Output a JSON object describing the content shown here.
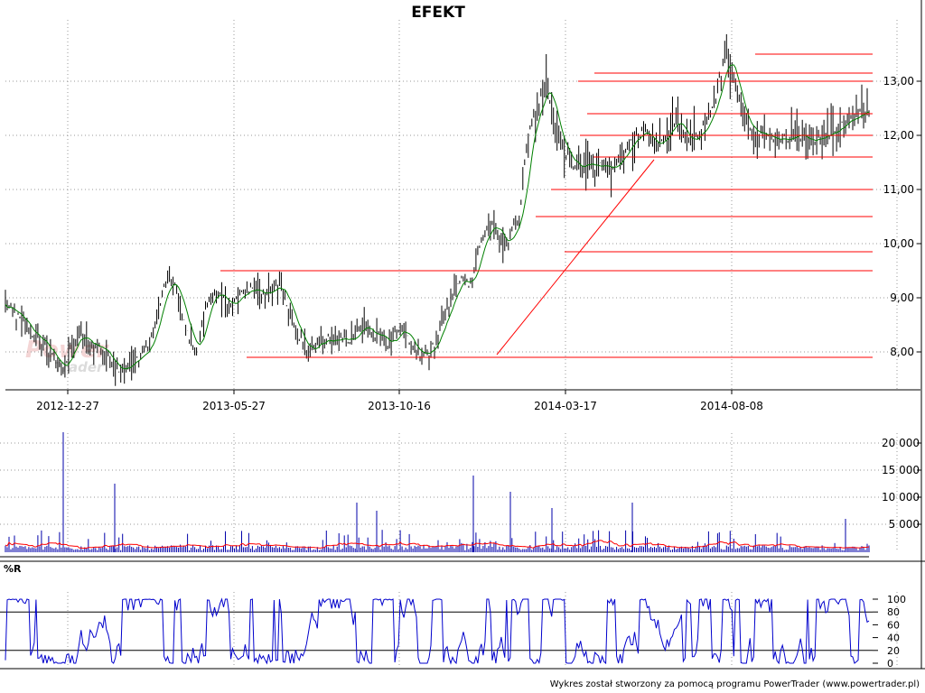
{
  "chart_data": [
    {
      "type": "ohlc",
      "title": "EFEKT",
      "xticks": [
        "2012-12-27",
        "2013-05-27",
        "2013-10-16",
        "2014-03-17",
        "2014-08-08"
      ],
      "yticks": [
        "8,00",
        "9,00",
        "10,00",
        "11,00",
        "12,00",
        "13,00"
      ],
      "ylim": [
        7.4,
        13.9
      ],
      "grid": true,
      "axis_side": "right",
      "series": [
        {
          "kind": "close-anchors",
          "values": [
            8.85,
            8.72,
            8.62,
            8.48,
            8.32,
            8.2,
            8.1,
            7.85,
            7.7,
            7.85,
            8.2,
            8.3,
            8.15,
            8.12,
            8.08,
            7.9,
            7.75,
            7.7,
            7.75,
            7.85,
            8.0,
            8.1,
            8.6,
            9.15,
            9.3,
            9.1,
            8.55,
            8.2,
            8.0,
            8.7,
            9.1,
            9.0,
            8.95,
            8.85,
            9.0,
            9.1,
            9.2,
            9.1,
            9.1,
            9.1,
            9.25,
            8.9,
            8.6,
            8.25,
            8.0,
            8.1,
            8.2,
            8.2,
            8.2,
            8.25,
            8.2,
            8.35,
            8.5,
            8.4,
            8.25,
            8.3,
            8.1,
            8.35,
            8.45,
            8.1,
            7.95,
            7.95,
            8.0,
            8.3,
            8.6,
            9.0,
            9.3,
            9.3,
            9.2,
            10.0,
            10.2,
            10.4,
            10.2,
            9.9,
            10.3,
            10.5,
            11.7,
            12.3,
            12.6,
            13.0,
            12.2,
            11.9,
            11.6,
            11.5,
            11.3,
            11.5,
            11.35,
            11.5,
            11.35,
            11.5,
            11.6,
            11.8,
            12.0,
            12.1,
            11.95,
            11.8,
            12.0,
            12.2,
            12.3,
            12.0,
            11.9,
            12.0,
            12.2,
            12.5,
            12.9,
            13.5,
            13.2,
            12.6,
            12.2,
            12.1,
            12.0,
            12.0,
            11.95,
            11.9,
            11.9,
            11.95,
            12.0,
            11.9,
            11.95,
            12.0,
            12.0,
            12.1,
            12.2,
            12.25,
            12.3,
            12.5,
            12.42
          ]
        },
        {
          "kind": "moving-average",
          "color": "#008000"
        }
      ],
      "support_resistance_levels": [
        13.5,
        13.15,
        13.0,
        12.4,
        12.0,
        11.6,
        11.0,
        10.5,
        9.85,
        9.5,
        7.9
      ],
      "trendline": {
        "from": [
          [
            550,
            7.95
          ]
        ],
        "to": [
          [
            724,
            11.55
          ]
        ]
      },
      "level_color": "#ff0000"
    },
    {
      "type": "bar",
      "title": "",
      "yticks": [
        "5 000",
        "10 000",
        "15 000",
        "20 000"
      ],
      "ylim": [
        0,
        23000
      ],
      "notable_values": [
        22000,
        12500,
        14000,
        11000,
        9000,
        6000
      ],
      "moving_average_color": "#ff0000",
      "bar_color": "#0000aa"
    },
    {
      "type": "line",
      "title": "%R",
      "yticks": [
        "0",
        "20",
        "40",
        "60",
        "80",
        "100"
      ],
      "ylim": [
        0,
        100
      ],
      "reference_lines": [
        20,
        80
      ],
      "line_color": "#0000cc"
    }
  ],
  "watermark": {
    "line1": "Power",
    "line2": "Trader"
  },
  "footer": "Wykres został stworzony za pomocą programu PowerTrader (www.powertrader.pl)"
}
